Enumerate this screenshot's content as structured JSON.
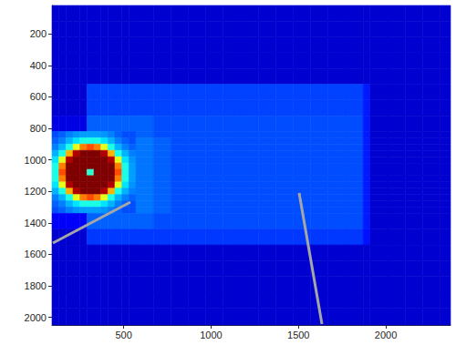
{
  "chart_data": {
    "type": "heatmap",
    "xlim": [
      90,
      2370
    ],
    "xticks": [
      500,
      1000,
      1500,
      2000
    ],
    "ylim": [
      20,
      2048
    ],
    "yticks": [
      200,
      400,
      600,
      800,
      1000,
      1200,
      1400,
      1600,
      1800,
      2000
    ],
    "cells": {
      "zlim": [
        0,
        1
      ],
      "x_edges": [
        90,
        130,
        170,
        210,
        250,
        290,
        330,
        370,
        410,
        450,
        490,
        530,
        570,
        670,
        770,
        870,
        970,
        1070,
        1170,
        1270,
        1370,
        1470,
        1570,
        1670,
        1770,
        1870,
        1910,
        2010,
        2110,
        2210,
        2310,
        2370
      ],
      "y_edges": [
        20,
        120,
        220,
        320,
        420,
        520,
        620,
        720,
        820,
        860,
        900,
        940,
        980,
        1020,
        1060,
        1100,
        1140,
        1180,
        1220,
        1260,
        1300,
        1340,
        1440,
        1540,
        1640,
        1740,
        1840,
        1940,
        2048
      ],
      "z": [
        [
          0.08,
          0.08,
          0.08,
          0.08,
          0.08,
          0.08,
          0.08,
          0.08,
          0.08,
          0.08,
          0.08,
          0.08,
          0.08,
          0.08,
          0.08,
          0.08,
          0.08,
          0.08,
          0.08,
          0.08,
          0.08,
          0.08,
          0.08,
          0.08,
          0.08,
          0.08,
          0.08,
          0.08,
          0.08,
          0.08,
          0.08
        ],
        [
          0.08,
          0.08,
          0.08,
          0.08,
          0.08,
          0.08,
          0.08,
          0.08,
          0.08,
          0.08,
          0.08,
          0.08,
          0.08,
          0.08,
          0.08,
          0.08,
          0.08,
          0.08,
          0.08,
          0.08,
          0.08,
          0.08,
          0.08,
          0.08,
          0.08,
          0.08,
          0.08,
          0.08,
          0.08,
          0.08,
          0.08
        ],
        [
          0.08,
          0.08,
          0.08,
          0.08,
          0.08,
          0.08,
          0.08,
          0.08,
          0.08,
          0.08,
          0.08,
          0.08,
          0.08,
          0.08,
          0.08,
          0.08,
          0.08,
          0.08,
          0.08,
          0.08,
          0.08,
          0.08,
          0.08,
          0.08,
          0.08,
          0.08,
          0.08,
          0.08,
          0.08,
          0.08,
          0.08
        ],
        [
          0.08,
          0.08,
          0.08,
          0.08,
          0.08,
          0.08,
          0.08,
          0.08,
          0.08,
          0.08,
          0.08,
          0.08,
          0.08,
          0.08,
          0.08,
          0.08,
          0.08,
          0.08,
          0.08,
          0.08,
          0.08,
          0.08,
          0.08,
          0.08,
          0.08,
          0.08,
          0.08,
          0.08,
          0.08,
          0.08,
          0.08
        ],
        [
          0.08,
          0.08,
          0.08,
          0.08,
          0.08,
          0.08,
          0.08,
          0.08,
          0.08,
          0.08,
          0.08,
          0.08,
          0.08,
          0.08,
          0.08,
          0.08,
          0.08,
          0.08,
          0.08,
          0.08,
          0.08,
          0.08,
          0.08,
          0.08,
          0.08,
          0.08,
          0.08,
          0.08,
          0.08,
          0.08,
          0.08
        ],
        [
          0.08,
          0.08,
          0.08,
          0.08,
          0.08,
          0.19,
          0.19,
          0.19,
          0.19,
          0.19,
          0.19,
          0.19,
          0.19,
          0.19,
          0.19,
          0.19,
          0.19,
          0.19,
          0.19,
          0.19,
          0.19,
          0.19,
          0.19,
          0.19,
          0.19,
          0.15,
          0.08,
          0.08,
          0.08,
          0.08,
          0.08
        ],
        [
          0.08,
          0.08,
          0.08,
          0.08,
          0.08,
          0.19,
          0.19,
          0.19,
          0.19,
          0.19,
          0.19,
          0.19,
          0.19,
          0.19,
          0.19,
          0.19,
          0.19,
          0.19,
          0.19,
          0.19,
          0.19,
          0.19,
          0.19,
          0.19,
          0.19,
          0.15,
          0.08,
          0.08,
          0.08,
          0.08,
          0.08
        ],
        [
          0.1,
          0.1,
          0.1,
          0.1,
          0.1,
          0.22,
          0.22,
          0.22,
          0.22,
          0.22,
          0.22,
          0.22,
          0.22,
          0.2,
          0.2,
          0.2,
          0.2,
          0.2,
          0.2,
          0.2,
          0.2,
          0.2,
          0.2,
          0.2,
          0.2,
          0.15,
          0.08,
          0.08,
          0.08,
          0.08,
          0.08
        ],
        [
          0.2,
          0.22,
          0.25,
          0.27,
          0.28,
          0.28,
          0.28,
          0.27,
          0.25,
          0.22,
          0.2,
          0.2,
          0.22,
          0.2,
          0.2,
          0.2,
          0.2,
          0.2,
          0.2,
          0.2,
          0.2,
          0.2,
          0.2,
          0.2,
          0.2,
          0.15,
          0.08,
          0.08,
          0.08,
          0.08,
          0.08
        ],
        [
          0.22,
          0.25,
          0.3,
          0.35,
          0.4,
          0.4,
          0.4,
          0.35,
          0.3,
          0.25,
          0.22,
          0.2,
          0.24,
          0.22,
          0.2,
          0.2,
          0.2,
          0.2,
          0.2,
          0.2,
          0.2,
          0.2,
          0.2,
          0.2,
          0.2,
          0.15,
          0.08,
          0.08,
          0.08,
          0.08,
          0.08
        ],
        [
          0.25,
          0.3,
          0.4,
          0.6,
          0.75,
          0.8,
          0.75,
          0.6,
          0.4,
          0.3,
          0.25,
          0.22,
          0.24,
          0.22,
          0.2,
          0.2,
          0.2,
          0.2,
          0.2,
          0.2,
          0.2,
          0.2,
          0.2,
          0.2,
          0.2,
          0.15,
          0.08,
          0.08,
          0.08,
          0.08,
          0.08
        ],
        [
          0.3,
          0.4,
          0.7,
          0.95,
          1,
          1,
          1,
          0.95,
          0.7,
          0.4,
          0.3,
          0.25,
          0.24,
          0.22,
          0.2,
          0.2,
          0.2,
          0.2,
          0.2,
          0.2,
          0.2,
          0.2,
          0.2,
          0.2,
          0.2,
          0.15,
          0.08,
          0.08,
          0.08,
          0.08,
          0.08
        ],
        [
          0.35,
          0.6,
          0.95,
          1,
          1,
          1,
          1,
          1,
          0.95,
          0.6,
          0.35,
          0.27,
          0.24,
          0.22,
          0.2,
          0.2,
          0.2,
          0.2,
          0.2,
          0.2,
          0.2,
          0.2,
          0.2,
          0.2,
          0.2,
          0.15,
          0.08,
          0.08,
          0.08,
          0.08,
          0.08
        ],
        [
          0.4,
          0.75,
          1,
          1,
          1,
          1,
          1,
          1,
          1,
          0.75,
          0.4,
          0.28,
          0.24,
          0.22,
          0.2,
          0.2,
          0.2,
          0.2,
          0.2,
          0.2,
          0.2,
          0.2,
          0.2,
          0.2,
          0.2,
          0.15,
          0.08,
          0.08,
          0.08,
          0.08,
          0.08
        ],
        [
          0.4,
          0.8,
          1,
          1,
          1,
          0.42,
          1,
          1,
          1,
          0.8,
          0.4,
          0.28,
          0.24,
          0.22,
          0.2,
          0.2,
          0.2,
          0.2,
          0.2,
          0.2,
          0.2,
          0.2,
          0.2,
          0.2,
          0.2,
          0.15,
          0.08,
          0.08,
          0.08,
          0.08,
          0.08
        ],
        [
          0.4,
          0.75,
          1,
          1,
          1,
          1,
          1,
          1,
          1,
          0.75,
          0.4,
          0.28,
          0.24,
          0.22,
          0.2,
          0.2,
          0.2,
          0.2,
          0.2,
          0.2,
          0.2,
          0.2,
          0.2,
          0.2,
          0.2,
          0.15,
          0.08,
          0.08,
          0.08,
          0.08,
          0.08
        ],
        [
          0.35,
          0.6,
          0.95,
          1,
          1,
          1,
          1,
          1,
          0.95,
          0.6,
          0.35,
          0.27,
          0.24,
          0.22,
          0.2,
          0.2,
          0.2,
          0.2,
          0.2,
          0.2,
          0.2,
          0.2,
          0.2,
          0.2,
          0.2,
          0.15,
          0.08,
          0.08,
          0.08,
          0.08,
          0.08
        ],
        [
          0.3,
          0.4,
          0.7,
          0.95,
          1,
          1,
          1,
          0.95,
          0.7,
          0.4,
          0.3,
          0.25,
          0.24,
          0.22,
          0.2,
          0.2,
          0.2,
          0.2,
          0.2,
          0.2,
          0.2,
          0.2,
          0.2,
          0.2,
          0.2,
          0.15,
          0.08,
          0.08,
          0.08,
          0.08,
          0.08
        ],
        [
          0.25,
          0.3,
          0.4,
          0.6,
          0.75,
          0.8,
          0.75,
          0.6,
          0.4,
          0.3,
          0.25,
          0.22,
          0.24,
          0.22,
          0.2,
          0.2,
          0.2,
          0.2,
          0.2,
          0.2,
          0.2,
          0.2,
          0.2,
          0.2,
          0.2,
          0.15,
          0.08,
          0.08,
          0.08,
          0.08,
          0.08
        ],
        [
          0.22,
          0.25,
          0.3,
          0.35,
          0.4,
          0.4,
          0.4,
          0.35,
          0.3,
          0.25,
          0.22,
          0.2,
          0.24,
          0.22,
          0.2,
          0.2,
          0.2,
          0.2,
          0.2,
          0.2,
          0.2,
          0.2,
          0.2,
          0.2,
          0.2,
          0.15,
          0.08,
          0.08,
          0.08,
          0.08,
          0.08
        ],
        [
          0.2,
          0.22,
          0.25,
          0.27,
          0.28,
          0.28,
          0.28,
          0.27,
          0.25,
          0.22,
          0.2,
          0.2,
          0.24,
          0.22,
          0.2,
          0.2,
          0.2,
          0.2,
          0.2,
          0.2,
          0.2,
          0.2,
          0.2,
          0.2,
          0.2,
          0.15,
          0.08,
          0.08,
          0.08,
          0.08,
          0.08
        ],
        [
          0.12,
          0.12,
          0.12,
          0.12,
          0.12,
          0.22,
          0.22,
          0.22,
          0.22,
          0.22,
          0.22,
          0.22,
          0.22,
          0.2,
          0.2,
          0.2,
          0.2,
          0.2,
          0.2,
          0.2,
          0.2,
          0.2,
          0.2,
          0.2,
          0.2,
          0.15,
          0.08,
          0.08,
          0.08,
          0.08,
          0.08
        ],
        [
          0.08,
          0.08,
          0.08,
          0.08,
          0.08,
          0.18,
          0.18,
          0.18,
          0.18,
          0.18,
          0.18,
          0.18,
          0.18,
          0.18,
          0.18,
          0.18,
          0.18,
          0.18,
          0.18,
          0.18,
          0.18,
          0.18,
          0.18,
          0.18,
          0.18,
          0.14,
          0.08,
          0.08,
          0.08,
          0.08,
          0.08
        ],
        [
          0.08,
          0.08,
          0.08,
          0.08,
          0.08,
          0.08,
          0.08,
          0.08,
          0.08,
          0.08,
          0.08,
          0.08,
          0.08,
          0.08,
          0.08,
          0.08,
          0.08,
          0.08,
          0.08,
          0.08,
          0.08,
          0.08,
          0.08,
          0.08,
          0.08,
          0.08,
          0.08,
          0.08,
          0.08,
          0.08,
          0.08
        ],
        [
          0.08,
          0.08,
          0.08,
          0.08,
          0.08,
          0.08,
          0.08,
          0.08,
          0.08,
          0.08,
          0.08,
          0.08,
          0.08,
          0.08,
          0.08,
          0.08,
          0.08,
          0.08,
          0.08,
          0.08,
          0.08,
          0.08,
          0.08,
          0.08,
          0.08,
          0.08,
          0.08,
          0.08,
          0.08,
          0.08,
          0.08
        ],
        [
          0.08,
          0.08,
          0.08,
          0.08,
          0.08,
          0.08,
          0.08,
          0.08,
          0.08,
          0.08,
          0.08,
          0.08,
          0.08,
          0.08,
          0.08,
          0.08,
          0.08,
          0.08,
          0.08,
          0.08,
          0.08,
          0.08,
          0.08,
          0.08,
          0.08,
          0.08,
          0.08,
          0.08,
          0.08,
          0.08,
          0.08
        ],
        [
          0.08,
          0.08,
          0.08,
          0.08,
          0.08,
          0.08,
          0.08,
          0.08,
          0.08,
          0.08,
          0.08,
          0.08,
          0.08,
          0.08,
          0.08,
          0.08,
          0.08,
          0.08,
          0.08,
          0.08,
          0.08,
          0.08,
          0.08,
          0.08,
          0.08,
          0.08,
          0.08,
          0.08,
          0.08,
          0.08,
          0.08
        ],
        [
          0.08,
          0.08,
          0.08,
          0.08,
          0.08,
          0.08,
          0.08,
          0.08,
          0.08,
          0.08,
          0.08,
          0.08,
          0.08,
          0.08,
          0.08,
          0.08,
          0.08,
          0.08,
          0.08,
          0.08,
          0.08,
          0.08,
          0.08,
          0.08,
          0.08,
          0.08,
          0.08,
          0.08,
          0.08,
          0.08,
          0.08
        ]
      ]
    }
  }
}
